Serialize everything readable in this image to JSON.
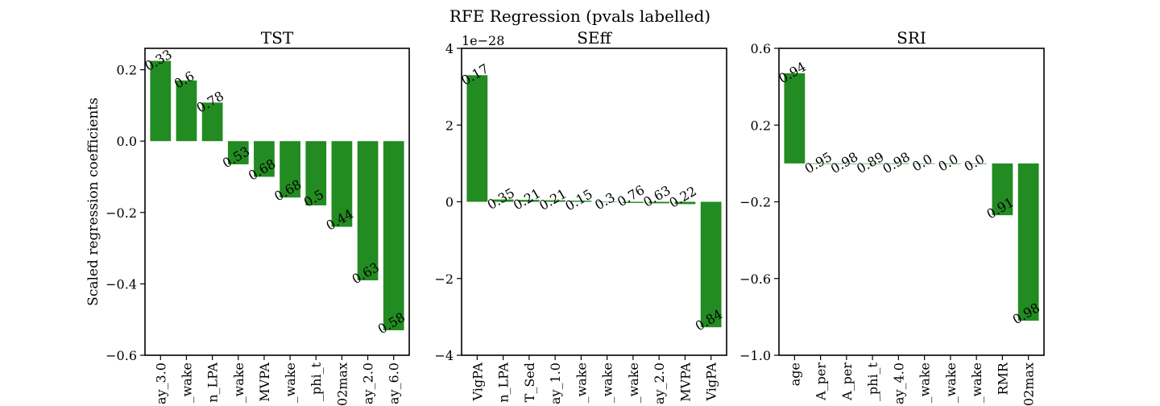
{
  "figure": {
    "suptitle": "RFE Regression (pvals labelled)",
    "bar_color": "#228b22"
  },
  "chart_data": [
    {
      "type": "bar",
      "title": "TST",
      "ylabel": "Scaled regression coefficients",
      "ylim": [
        -0.6,
        0.26
      ],
      "yticks": [
        0.2,
        0.0,
        -0.2,
        -0.4,
        -0.6
      ],
      "ytick_labels": [
        "0.2",
        "0.0",
        "−0.2",
        "−0.4",
        "−0.6"
      ],
      "offset_label": "",
      "categories": [
        "ay_3.0",
        "_wake",
        "n_LPA",
        "_wake",
        "MVPA",
        "_wake",
        "_phi_t",
        "02max",
        "ay_2.0",
        "ay_6.0"
      ],
      "values": [
        0.225,
        0.17,
        0.108,
        -0.065,
        -0.1,
        -0.158,
        -0.18,
        -0.24,
        -0.39,
        -0.53
      ],
      "pvals": [
        "0.33",
        "0.6",
        "0.78",
        "0.53",
        "0.68",
        "0.68",
        "0.5",
        "0.44",
        "0.63",
        "0.58"
      ]
    },
    {
      "type": "bar",
      "title": "SEff",
      "ylabel": "",
      "ylim": [
        -4,
        4
      ],
      "yticks": [
        4,
        2,
        0,
        -2,
        -4
      ],
      "ytick_labels": [
        "4",
        "2",
        "0",
        "−2",
        "−4"
      ],
      "offset_label": "1e−28",
      "categories": [
        "VigPA",
        "n_LPA",
        "T_Sed",
        "ay_1.0",
        "_wake",
        "_wake",
        "_wake",
        "ay_2.0",
        "MVPA",
        "VigPA"
      ],
      "values": [
        3.3,
        0.06,
        0.05,
        0.04,
        0.03,
        0.0,
        -0.03,
        -0.04,
        -0.06,
        -3.27
      ],
      "pvals": [
        "0.17",
        "0.35",
        "0.21",
        "0.21",
        "0.15",
        "0.3",
        "0.76",
        "0.63",
        "0.22",
        "0.84"
      ]
    },
    {
      "type": "bar",
      "title": "SRI",
      "ylabel": "",
      "ylim": [
        -1.0,
        0.6
      ],
      "yticks": [
        0.6,
        0.2,
        -0.2,
        -0.6,
        -1.0
      ],
      "ytick_labels": [
        "0.6",
        "0.2",
        "−0.2",
        "−0.6",
        "−1.0"
      ],
      "offset_label": "",
      "categories": [
        "age",
        "A_per",
        "A_per",
        "_phi_t",
        "ay_4.0",
        "_wake",
        "_wake",
        "_wake",
        "RMR",
        "02max"
      ],
      "values": [
        0.47,
        0.0,
        0.0,
        0.0,
        0.0,
        0.0,
        0.0,
        0.0,
        -0.27,
        -0.82
      ],
      "pvals": [
        "0.94",
        "0.95",
        "0.98",
        "0.89",
        "0.98",
        "0.0",
        "0.0",
        "0.0",
        "0.91",
        "0.98"
      ]
    }
  ]
}
